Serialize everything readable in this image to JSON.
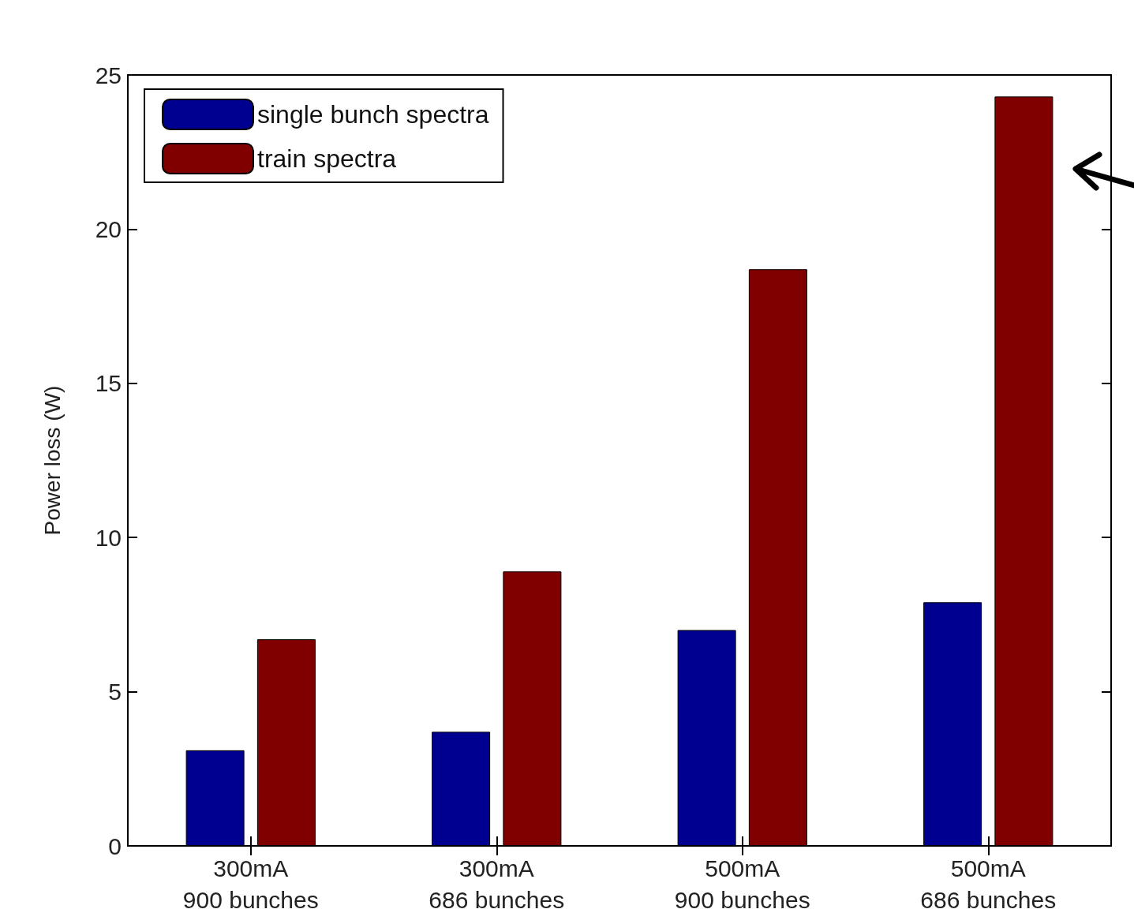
{
  "chart_data": {
    "type": "bar",
    "ylabel": "Power loss (W)",
    "categories": [
      "300mA\n900 bunches",
      "300mA\n686 bunches",
      "500mA\n900 bunches",
      "500mA\n686 bunches"
    ],
    "series": [
      {
        "name": "single bunch spectra",
        "color": "#000090",
        "values": [
          3.1,
          3.7,
          7.0,
          7.9
        ]
      },
      {
        "name": "train spectra",
        "color": "#800000",
        "values": [
          6.7,
          8.9,
          18.7,
          24.3
        ]
      }
    ],
    "ylim": [
      0,
      25
    ],
    "yticks": [
      0,
      5,
      10,
      15,
      20,
      25
    ],
    "grid": false,
    "legend": "top left"
  }
}
